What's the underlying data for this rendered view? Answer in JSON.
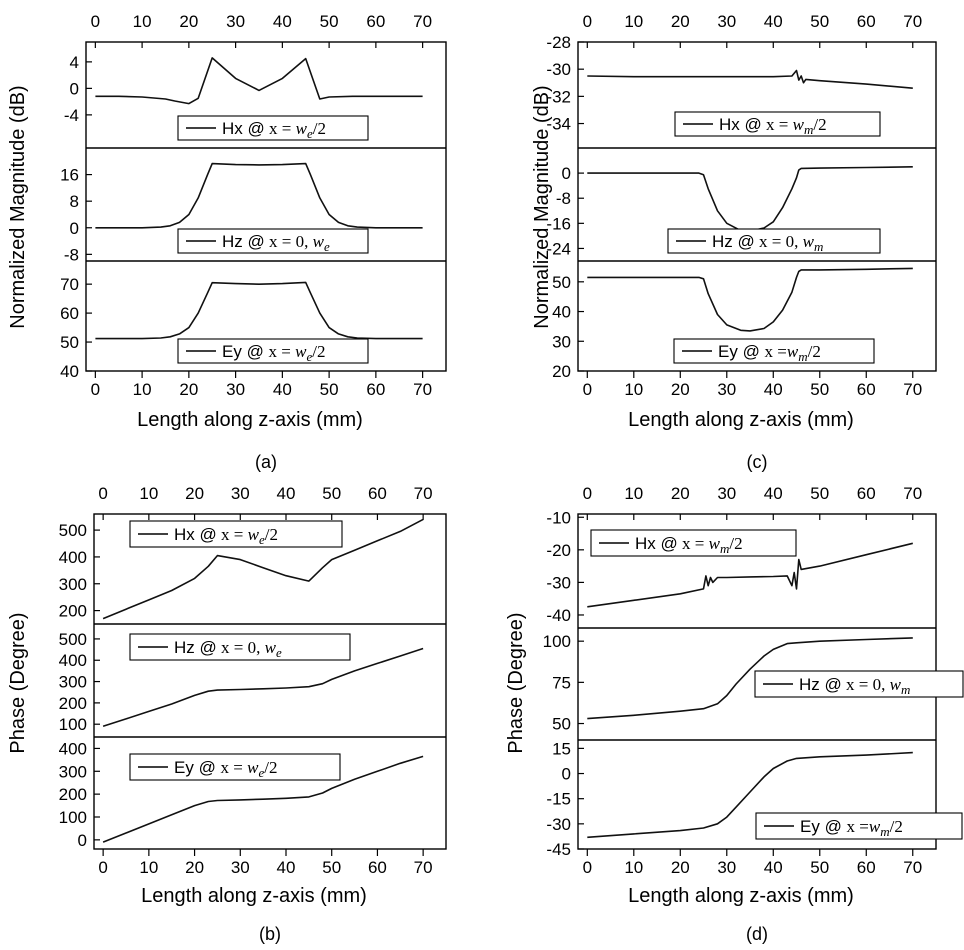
{
  "chart_data": [
    {
      "type": "line",
      "panel": "(a)",
      "ylabel": "Normalized Magnitude (dB)",
      "xlabel": "Length along z-axis (mm)",
      "x_ticks": [
        0,
        10,
        20,
        30,
        40,
        50,
        60,
        70
      ],
      "xlim": [
        -2,
        75
      ],
      "subplots": [
        {
          "legend": {
            "name": "Hx",
            "at": "@",
            "x_text": "x = ",
            "expr": "w",
            "sub": "e",
            "suffix": "/2"
          },
          "ylim": [
            -9,
            7
          ],
          "y_ticks": [
            "4",
            "0",
            "-4"
          ],
          "y_tick_values": [
            4,
            0,
            -4
          ],
          "x": [
            0,
            5,
            10,
            15,
            17,
            20,
            22,
            25,
            30,
            35,
            40,
            45,
            48,
            50,
            55,
            60,
            65,
            70
          ],
          "y": [
            -1.2,
            -1.2,
            -1.3,
            -1.6,
            -1.9,
            -2.3,
            -1.5,
            4.6,
            1.5,
            -0.3,
            1.5,
            4.5,
            -1.6,
            -1.3,
            -1.2,
            -1.2,
            -1.2,
            -1.2
          ]
        },
        {
          "legend": {
            "name": "Hz",
            "at": "@",
            "x_text": "x = 0, ",
            "expr": "w",
            "sub": "e",
            "suffix": ""
          },
          "ylim": [
            -10,
            24
          ],
          "y_ticks": [
            "16",
            "8",
            "0",
            "-8"
          ],
          "y_tick_values": [
            16,
            8,
            0,
            -8
          ],
          "x": [
            0,
            5,
            10,
            14,
            16,
            18,
            20,
            22,
            24,
            25,
            30,
            35,
            40,
            45,
            46,
            48,
            50,
            52,
            54,
            56,
            60,
            65,
            70
          ],
          "y": [
            0,
            0,
            0,
            0.2,
            0.6,
            1.6,
            4,
            9,
            16,
            19.3,
            19,
            18.9,
            19,
            19.3,
            16,
            9,
            4,
            1.6,
            0.6,
            0.2,
            0,
            0,
            0
          ]
        },
        {
          "legend": {
            "name": "Ey",
            "at": "@ ",
            "x_text": "x = ",
            "expr": "w",
            "sub": "e",
            "suffix": "/2"
          },
          "ylim": [
            40,
            78
          ],
          "y_ticks": [
            "70",
            "60",
            "50",
            "40"
          ],
          "y_tick_values": [
            70,
            60,
            50,
            40
          ],
          "x": [
            0,
            5,
            10,
            14,
            16,
            18,
            20,
            22,
            24,
            25,
            30,
            35,
            40,
            45,
            46,
            48,
            50,
            52,
            54,
            56,
            60,
            65,
            70
          ],
          "y": [
            51.2,
            51.2,
            51.2,
            51.4,
            51.8,
            52.8,
            55,
            60,
            67,
            70.5,
            70.2,
            70,
            70.2,
            70.6,
            67,
            60,
            55,
            52.8,
            51.8,
            51.4,
            51.2,
            51.2,
            51.2
          ]
        }
      ]
    },
    {
      "type": "line",
      "panel": "(c)",
      "ylabel": "Normalized Magnitude (dB)",
      "xlabel": "Length along z-axis (mm)",
      "x_ticks": [
        0,
        10,
        20,
        30,
        40,
        50,
        60,
        70
      ],
      "xlim": [
        -2,
        75
      ],
      "subplots": [
        {
          "legend": {
            "name": "Hx",
            "at": "@",
            "x_text": "x = ",
            "expr": "w",
            "sub": "m",
            "suffix": "/2"
          },
          "ylim": [
            -35.8,
            -28
          ],
          "y_ticks": [
            "-28",
            "-30",
            "-32",
            "-34"
          ],
          "y_tick_values": [
            -28,
            -30,
            -32,
            -34
          ],
          "x": [
            0,
            10,
            20,
            30,
            40,
            44,
            45,
            45.5,
            46,
            46.5,
            47,
            50,
            60,
            70
          ],
          "y": [
            -30.5,
            -30.55,
            -30.55,
            -30.55,
            -30.55,
            -30.5,
            -30.1,
            -30.8,
            -30.5,
            -31.0,
            -30.75,
            -30.85,
            -31.1,
            -31.4
          ]
        },
        {
          "legend": {
            "name": "Hz",
            "at": "@",
            "x_text": "x = 0, ",
            "expr": "w",
            "sub": "m",
            "suffix": ""
          },
          "ylim": [
            -28,
            8
          ],
          "y_ticks": [
            "0",
            "-8",
            "-16",
            "-24"
          ],
          "y_tick_values": [
            0,
            -8,
            -16,
            -24
          ],
          "x": [
            0,
            10,
            20,
            24,
            25,
            26,
            28,
            30,
            33,
            35,
            38,
            40,
            42,
            44,
            45,
            45.5,
            46,
            50,
            60,
            70
          ],
          "y": [
            0,
            0,
            0,
            0,
            -0.5,
            -5,
            -12,
            -16,
            -18.3,
            -18.5,
            -17.5,
            -15.5,
            -11,
            -5,
            -1.5,
            1,
            1.5,
            1.6,
            1.8,
            2
          ]
        },
        {
          "legend": {
            "name": "Ey",
            "at": "@ ",
            "x_text": "x =",
            "expr": "w",
            "sub": "m",
            "suffix": "/2"
          },
          "ylim": [
            20,
            57
          ],
          "y_ticks": [
            "50",
            "40",
            "30",
            "20"
          ],
          "y_tick_values": [
            50,
            40,
            30,
            20
          ],
          "x": [
            0,
            10,
            20,
            24,
            25,
            26,
            28,
            30,
            33,
            35,
            38,
            40,
            42,
            44,
            45,
            45.5,
            46,
            50,
            60,
            70
          ],
          "y": [
            51.5,
            51.5,
            51.5,
            51.5,
            51,
            46,
            39,
            35.5,
            33.7,
            33.5,
            34.3,
            36.5,
            40.5,
            46.5,
            51.5,
            53.5,
            54,
            54,
            54.2,
            54.5
          ]
        }
      ]
    },
    {
      "type": "line",
      "panel": "(b)",
      "ylabel": "Phase (Degree)",
      "xlabel": "Length along z-axis (mm)",
      "x_ticks": [
        0,
        10,
        20,
        30,
        40,
        50,
        60,
        70
      ],
      "xlim": [
        -2,
        75
      ],
      "subplots": [
        {
          "legend": {
            "name": "Hx",
            "at": "@",
            "x_text": "x = ",
            "expr": "w",
            "sub": "e",
            "suffix": "/2"
          },
          "ylim": [
            150,
            560
          ],
          "y_ticks": [
            "500",
            "400",
            "300",
            "200"
          ],
          "y_tick_values": [
            500,
            400,
            300,
            200
          ],
          "x": [
            0,
            5,
            10,
            15,
            20,
            23,
            25,
            30,
            35,
            40,
            45,
            48,
            50,
            55,
            60,
            65,
            70
          ],
          "y": [
            170,
            205,
            240,
            275,
            320,
            365,
            405,
            390,
            360,
            330,
            310,
            360,
            390,
            425,
            460,
            495,
            540
          ]
        },
        {
          "legend": {
            "name": "Hz",
            "at": "@",
            "x_text": "x = 0, ",
            "expr": "w",
            "sub": "e",
            "suffix": ""
          },
          "ylim": [
            40,
            570
          ],
          "y_ticks": [
            "500",
            "400",
            "300",
            "200",
            "100"
          ],
          "y_tick_values": [
            500,
            400,
            300,
            200,
            100
          ],
          "x": [
            0,
            5,
            10,
            15,
            20,
            23,
            25,
            30,
            35,
            40,
            45,
            48,
            50,
            55,
            60,
            65,
            70
          ],
          "y": [
            90,
            125,
            160,
            195,
            235,
            255,
            260,
            263,
            266,
            270,
            276,
            290,
            310,
            350,
            385,
            420,
            455
          ]
        },
        {
          "legend": {
            "name": "Ey",
            "at": "@ ",
            "x_text": "x = ",
            "expr": "w",
            "sub": "e",
            "suffix": "/2"
          },
          "ylim": [
            -40,
            450
          ],
          "y_ticks": [
            "400",
            "300",
            "200",
            "100",
            "0"
          ],
          "y_tick_values": [
            400,
            300,
            200,
            100,
            0
          ],
          "x": [
            0,
            5,
            10,
            15,
            20,
            23,
            25,
            30,
            35,
            40,
            45,
            48,
            50,
            55,
            60,
            65,
            70
          ],
          "y": [
            -10,
            30,
            70,
            110,
            150,
            168,
            172,
            175,
            178,
            182,
            188,
            205,
            225,
            265,
            300,
            335,
            365
          ]
        }
      ]
    },
    {
      "type": "line",
      "panel": "(d)",
      "ylabel": "Phase (Degree)",
      "xlabel": "Length along z-axis (mm)",
      "x_ticks": [
        0,
        10,
        20,
        30,
        40,
        50,
        60,
        70
      ],
      "xlim": [
        -2,
        75
      ],
      "subplots": [
        {
          "legend": {
            "name": "Hx",
            "at": "@",
            "x_text": "x = ",
            "expr": "w",
            "sub": "m",
            "suffix": "/2"
          },
          "ylim": [
            -44,
            -9
          ],
          "y_ticks": [
            "-10",
            "-20",
            "-30",
            "-40"
          ],
          "y_tick_values": [
            -10,
            -20,
            -30,
            -40
          ],
          "x": [
            0,
            10,
            20,
            25,
            25.5,
            26,
            26.5,
            27,
            28,
            30,
            35,
            40,
            43,
            44,
            44.5,
            45,
            45.5,
            46,
            50,
            60,
            70
          ],
          "y": [
            -37.5,
            -35.5,
            -33.5,
            -32,
            -28,
            -31,
            -28.5,
            -30,
            -28.5,
            -28.5,
            -28.3,
            -28.2,
            -28,
            -31,
            -27,
            -32,
            -23,
            -26,
            -25,
            -21.5,
            -18
          ]
        },
        {
          "legend": {
            "name": "Hz",
            "at": "@",
            "x_text": "x = 0, ",
            "expr": "w",
            "sub": "m",
            "suffix": ""
          },
          "ylim": [
            40,
            108
          ],
          "y_ticks": [
            "100",
            "75",
            "50"
          ],
          "y_tick_values": [
            100,
            75,
            50
          ],
          "x": [
            0,
            10,
            20,
            25,
            28,
            30,
            32,
            35,
            38,
            40,
            43,
            45,
            50,
            60,
            70
          ],
          "y": [
            53,
            55,
            57.5,
            59,
            62,
            67,
            74,
            83,
            91,
            95,
            98.5,
            99,
            100,
            101,
            102
          ]
        },
        {
          "legend": {
            "name": "Ey",
            "at": "@ ",
            "x_text": "x =",
            "expr": "w",
            "sub": "m",
            "suffix": "/2"
          },
          "ylim": [
            -45,
            20
          ],
          "y_ticks": [
            "15",
            "0",
            "-15",
            "-30",
            "-45"
          ],
          "y_tick_values": [
            15,
            0,
            -15,
            -30,
            -45
          ],
          "x": [
            0,
            10,
            20,
            25,
            28,
            30,
            32,
            35,
            38,
            40,
            43,
            45,
            50,
            60,
            70
          ],
          "y": [
            -38,
            -36,
            -34,
            -32.5,
            -30,
            -26,
            -20,
            -11,
            -2,
            3,
            7.5,
            9,
            10,
            11,
            12.5
          ]
        }
      ]
    }
  ]
}
